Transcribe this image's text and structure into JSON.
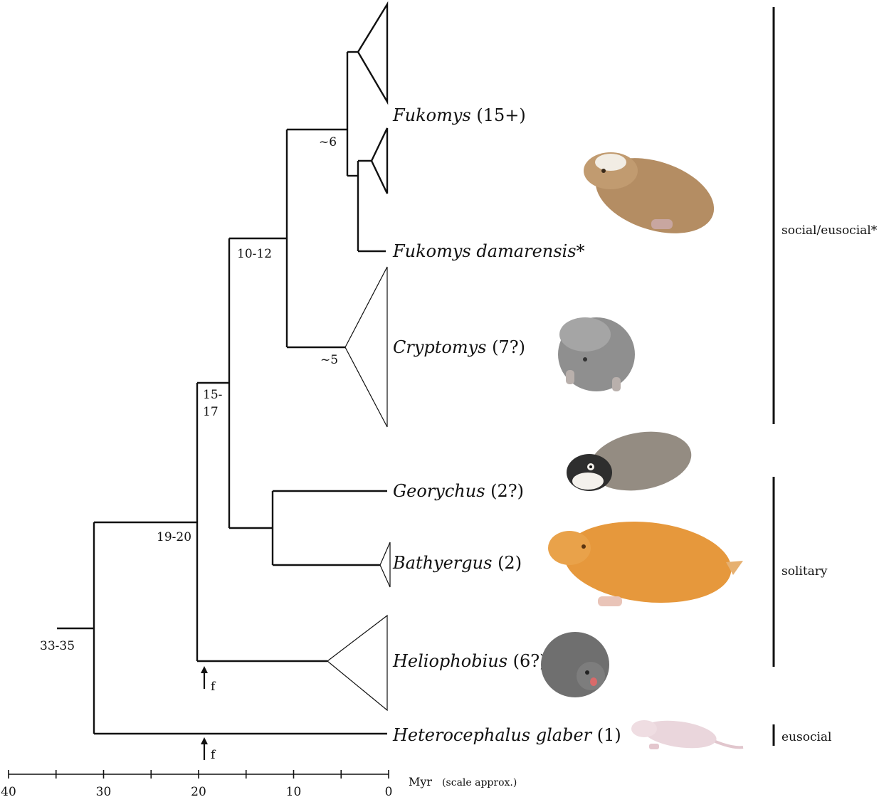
{
  "taxa": {
    "fukomys": {
      "name": "Fukomys",
      "count": "(15+)"
    },
    "fukomys_damarensis": {
      "name": "Fukomys damarensis*",
      "count": ""
    },
    "cryptomys": {
      "name": "Cryptomys",
      "count": "(7?)"
    },
    "georychus": {
      "name": "Georychus",
      "count": "(2?)"
    },
    "bathyergus": {
      "name": "Bathyergus",
      "count": "(2)"
    },
    "heliophobius": {
      "name": "Heliophobius",
      "count": "(6?)"
    },
    "heterocephalus": {
      "name": "Heterocephalus glaber",
      "count": "(1)"
    }
  },
  "node_ages": {
    "root": "33-35",
    "n19_20": "19-20",
    "n15_17_top": "15-",
    "n15_17_bottom": "17",
    "n10_12": "10-12",
    "n6": "~6",
    "n5": "~5"
  },
  "fossil_markers": {
    "label": "f"
  },
  "groups": {
    "social": "social/eusocial*",
    "solitary": "solitary",
    "eusocial": "eusocial"
  },
  "axis": {
    "ticks": [
      "40",
      "30",
      "20",
      "10",
      "0"
    ],
    "unit": "Myr",
    "note": "(scale approx.)"
  },
  "illustrations": [
    "fukomys-mole-rat",
    "cryptomys-mole-rat",
    "georychus-mole-rat",
    "bathyergus-mole-rat",
    "heliophobius-mole-rat",
    "naked-mole-rat"
  ]
}
